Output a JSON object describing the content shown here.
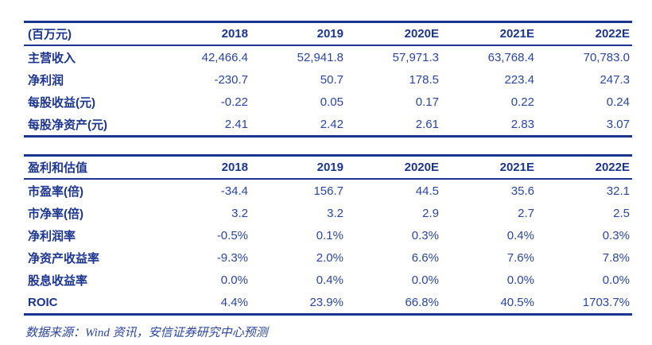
{
  "colors": {
    "navy": "#1b3590",
    "value_blue": "#2a46a0",
    "background": "#ffffff"
  },
  "summary_table": {
    "header": [
      "(百万元)",
      "2018",
      "2019",
      "2020E",
      "2021E",
      "2022E"
    ],
    "rows": [
      {
        "label": "主营收入",
        "values": [
          "42,466.4",
          "52,941.8",
          "57,971.3",
          "63,768.4",
          "70,783.0"
        ]
      },
      {
        "label": "净利润",
        "values": [
          "-230.7",
          "50.7",
          "178.5",
          "223.4",
          "247.3"
        ]
      },
      {
        "label": "每股收益(元)",
        "values": [
          "-0.22",
          "0.05",
          "0.17",
          "0.22",
          "0.24"
        ]
      },
      {
        "label": "每股净资产(元)",
        "values": [
          "2.41",
          "2.42",
          "2.61",
          "2.83",
          "3.07"
        ]
      }
    ]
  },
  "valuation_table": {
    "header": [
      "盈利和估值",
      "2018",
      "2019",
      "2020E",
      "2021E",
      "2022E"
    ],
    "rows": [
      {
        "label": "市盈率(倍)",
        "values": [
          "-34.4",
          "156.7",
          "44.5",
          "35.6",
          "32.1"
        ]
      },
      {
        "label": "市净率(倍)",
        "values": [
          "3.2",
          "3.2",
          "2.9",
          "2.7",
          "2.5"
        ]
      },
      {
        "label": "净利润率",
        "values": [
          "-0.5%",
          "0.1%",
          "0.3%",
          "0.4%",
          "0.3%"
        ]
      },
      {
        "label": "净资产收益率",
        "values": [
          "-9.3%",
          "2.0%",
          "6.6%",
          "7.6%",
          "7.8%"
        ]
      },
      {
        "label": "股息收益率",
        "values": [
          "0.0%",
          "0.4%",
          "0.0%",
          "0.0%",
          "0.0%"
        ]
      },
      {
        "label": "ROIC",
        "values": [
          "4.4%",
          "23.9%",
          "66.8%",
          "40.5%",
          "1703.7%"
        ]
      }
    ]
  },
  "footer": {
    "source": "数据来源：Wind 资讯，安信证券研究中心预测"
  }
}
